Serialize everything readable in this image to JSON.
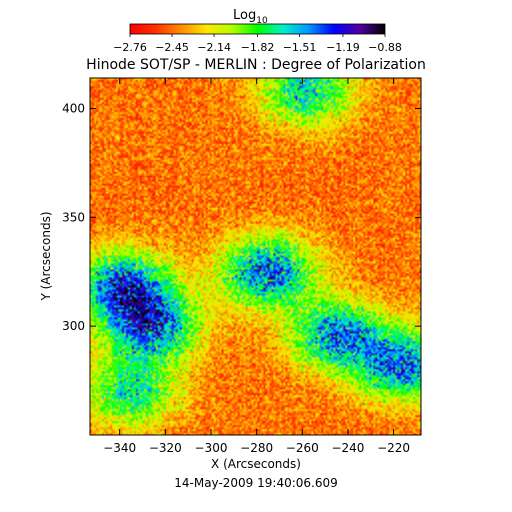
{
  "chart_data": {
    "type": "heatmap",
    "title": "Hinode SOT/SP - MERLIN : Degree of Polarization",
    "timestamp": "14-May-2009 19:40:06.609",
    "xlabel": "X (Arcseconds)",
    "ylabel": "Y (Arcseconds)",
    "xlim": [
      -353,
      -208
    ],
    "ylim": [
      250,
      414
    ],
    "x_ticks": [
      -340,
      -320,
      -300,
      -280,
      -260,
      -240,
      -220
    ],
    "x_tick_labels": [
      "−340",
      "−320",
      "−300",
      "−280",
      "−260",
      "−240",
      "−220"
    ],
    "y_ticks": [
      300,
      350,
      400
    ],
    "y_tick_labels": [
      "300",
      "350",
      "400"
    ],
    "colorbar": {
      "title_main": "Log",
      "title_sub": "10",
      "range": [
        -2.76,
        -0.88
      ],
      "ticks": [
        -2.76,
        -2.45,
        -2.14,
        -1.82,
        -1.51,
        -1.19,
        -0.88
      ],
      "tick_labels": [
        "−2.76",
        "−2.45",
        "−2.14",
        "−1.82",
        "−1.51",
        "−1.19",
        "−0.88"
      ],
      "colors": [
        "#ff0000",
        "#ff3000",
        "#ff8c00",
        "#ffe600",
        "#b4ff00",
        "#00ff00",
        "#00f0c8",
        "#0096ff",
        "#0000ff",
        "#5000a0",
        "#000000"
      ]
    },
    "grid": false,
    "polarized_regions_note_values": [
      {
        "x": -338,
        "y": 318,
        "level": -1.3
      },
      {
        "x": -326,
        "y": 300,
        "level": -1.35
      },
      {
        "x": -275,
        "y": 325,
        "level": -1.3
      },
      {
        "x": -245,
        "y": 296,
        "level": -1.4
      },
      {
        "x": -216,
        "y": 282,
        "level": -1.35
      },
      {
        "x": -335,
        "y": 270,
        "level": -1.7
      },
      {
        "x": -258,
        "y": 408,
        "level": -1.6
      }
    ]
  }
}
